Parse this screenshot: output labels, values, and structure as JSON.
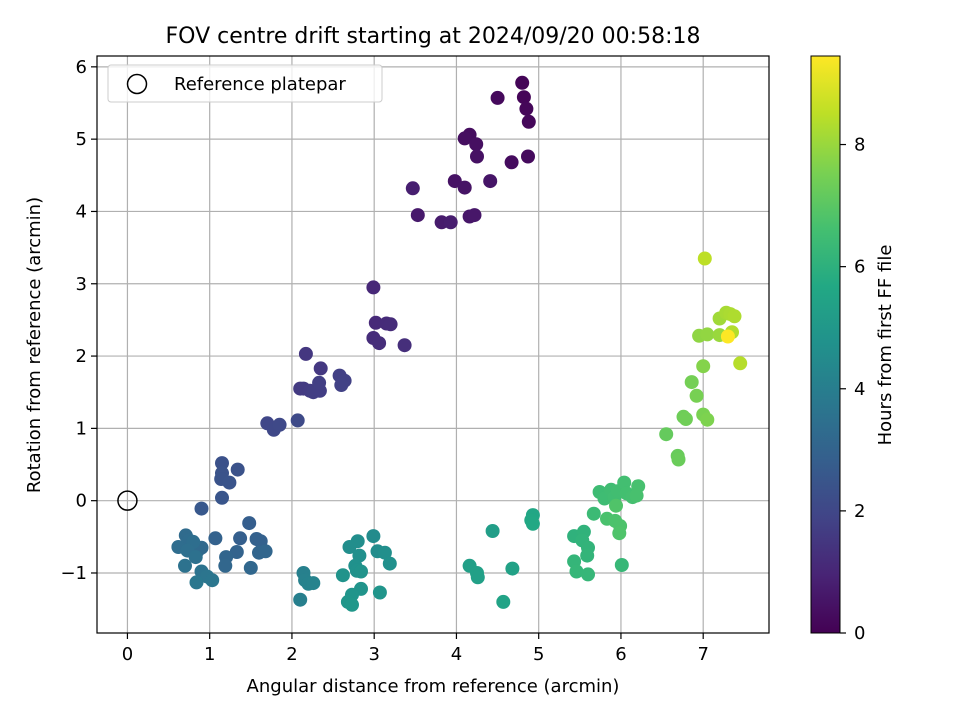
{
  "chart_data": {
    "type": "scatter",
    "title": "FOV centre drift starting at 2024/09/20 00:58:18",
    "xlabel": "Angular distance from reference (arcmin)",
    "ylabel": "Rotation from reference (arcmin)",
    "xlim": [
      -0.37,
      7.8
    ],
    "ylim": [
      -1.83,
      6.15
    ],
    "xticks": [
      0,
      1,
      2,
      3,
      4,
      5,
      6,
      7
    ],
    "yticks": [
      -1,
      0,
      1,
      2,
      3,
      4,
      5,
      6
    ],
    "grid": true,
    "legend": {
      "position": "top-left",
      "entries": [
        "Reference platepar"
      ]
    },
    "reference_point": {
      "x": 0,
      "y": 0,
      "label": "Reference platepar"
    },
    "colorbar": {
      "label": "Hours from first FF file",
      "colormap": "viridis",
      "range": [
        0,
        9.45
      ],
      "ticks": [
        0,
        2,
        4,
        6,
        8
      ]
    },
    "points": [
      {
        "x": 4.8,
        "y": 5.78,
        "c": 0.1
      },
      {
        "x": 4.82,
        "y": 5.58,
        "c": 0.12
      },
      {
        "x": 4.85,
        "y": 5.42,
        "c": 0.15
      },
      {
        "x": 4.88,
        "y": 5.24,
        "c": 0.18
      },
      {
        "x": 4.5,
        "y": 5.57,
        "c": 0.22
      },
      {
        "x": 4.87,
        "y": 4.76,
        "c": 0.25
      },
      {
        "x": 4.67,
        "y": 4.68,
        "c": 0.28
      },
      {
        "x": 4.16,
        "y": 5.06,
        "c": 0.32
      },
      {
        "x": 4.1,
        "y": 5.01,
        "c": 0.35
      },
      {
        "x": 4.24,
        "y": 4.93,
        "c": 0.38
      },
      {
        "x": 4.25,
        "y": 4.76,
        "c": 0.42
      },
      {
        "x": 3.98,
        "y": 4.42,
        "c": 0.45
      },
      {
        "x": 4.1,
        "y": 4.33,
        "c": 0.5
      },
      {
        "x": 4.41,
        "y": 4.42,
        "c": 0.53
      },
      {
        "x": 4.16,
        "y": 3.93,
        "c": 0.56
      },
      {
        "x": 4.22,
        "y": 3.95,
        "c": 0.6
      },
      {
        "x": 3.53,
        "y": 3.95,
        "c": 0.65
      },
      {
        "x": 3.82,
        "y": 3.85,
        "c": 0.7
      },
      {
        "x": 3.93,
        "y": 3.85,
        "c": 0.75
      },
      {
        "x": 3.47,
        "y": 4.32,
        "c": 0.8
      },
      {
        "x": 2.99,
        "y": 2.95,
        "c": 1.05
      },
      {
        "x": 3.02,
        "y": 2.46,
        "c": 1.1
      },
      {
        "x": 3.15,
        "y": 2.45,
        "c": 1.15
      },
      {
        "x": 3.2,
        "y": 2.44,
        "c": 1.18
      },
      {
        "x": 2.99,
        "y": 2.25,
        "c": 1.2
      },
      {
        "x": 3.06,
        "y": 2.18,
        "c": 1.23
      },
      {
        "x": 3.37,
        "y": 2.15,
        "c": 1.27
      },
      {
        "x": 2.17,
        "y": 2.03,
        "c": 1.5
      },
      {
        "x": 2.35,
        "y": 1.83,
        "c": 1.55
      },
      {
        "x": 2.1,
        "y": 1.55,
        "c": 1.6
      },
      {
        "x": 2.14,
        "y": 1.55,
        "c": 1.63
      },
      {
        "x": 2.22,
        "y": 1.52,
        "c": 1.66
      },
      {
        "x": 2.26,
        "y": 1.5,
        "c": 1.7
      },
      {
        "x": 2.34,
        "y": 1.52,
        "c": 1.72
      },
      {
        "x": 2.33,
        "y": 1.63,
        "c": 1.75
      },
      {
        "x": 2.58,
        "y": 1.73,
        "c": 1.78
      },
      {
        "x": 2.64,
        "y": 1.66,
        "c": 1.8
      },
      {
        "x": 2.6,
        "y": 1.6,
        "c": 1.82
      },
      {
        "x": 1.7,
        "y": 1.07,
        "c": 2.0
      },
      {
        "x": 1.78,
        "y": 0.98,
        "c": 2.03
      },
      {
        "x": 1.85,
        "y": 1.05,
        "c": 2.06
      },
      {
        "x": 2.07,
        "y": 1.11,
        "c": 2.1
      },
      {
        "x": 1.15,
        "y": 0.52,
        "c": 2.35
      },
      {
        "x": 1.34,
        "y": 0.43,
        "c": 2.38
      },
      {
        "x": 1.15,
        "y": 0.38,
        "c": 2.4
      },
      {
        "x": 1.14,
        "y": 0.3,
        "c": 2.42
      },
      {
        "x": 1.24,
        "y": 0.25,
        "c": 2.45
      },
      {
        "x": 1.15,
        "y": 0.04,
        "c": 2.5
      },
      {
        "x": 0.9,
        "y": -0.11,
        "c": 2.6
      },
      {
        "x": 1.48,
        "y": -0.31,
        "c": 2.8
      },
      {
        "x": 1.37,
        "y": -0.52,
        "c": 2.85
      },
      {
        "x": 1.57,
        "y": -0.53,
        "c": 2.9
      },
      {
        "x": 1.62,
        "y": -0.56,
        "c": 2.92
      },
      {
        "x": 1.07,
        "y": -0.52,
        "c": 2.95
      },
      {
        "x": 1.33,
        "y": -0.71,
        "c": 3.0
      },
      {
        "x": 1.2,
        "y": -0.78,
        "c": 3.05
      },
      {
        "x": 1.6,
        "y": -0.72,
        "c": 3.08
      },
      {
        "x": 1.68,
        "y": -0.7,
        "c": 3.1
      },
      {
        "x": 1.19,
        "y": -0.9,
        "c": 3.13
      },
      {
        "x": 1.5,
        "y": -0.93,
        "c": 3.15
      },
      {
        "x": 0.9,
        "y": -0.65,
        "c": 3.2
      },
      {
        "x": 0.85,
        "y": -0.7,
        "c": 3.25
      },
      {
        "x": 0.71,
        "y": -0.48,
        "c": 3.3
      },
      {
        "x": 0.75,
        "y": -0.55,
        "c": 3.33
      },
      {
        "x": 0.62,
        "y": -0.64,
        "c": 3.36
      },
      {
        "x": 0.8,
        "y": -0.57,
        "c": 3.4
      },
      {
        "x": 0.73,
        "y": -0.69,
        "c": 3.45
      },
      {
        "x": 0.83,
        "y": -0.78,
        "c": 3.5
      },
      {
        "x": 0.7,
        "y": -0.9,
        "c": 3.55
      },
      {
        "x": 0.9,
        "y": -0.98,
        "c": 3.6
      },
      {
        "x": 0.97,
        "y": -1.05,
        "c": 3.65
      },
      {
        "x": 1.03,
        "y": -1.1,
        "c": 3.7
      },
      {
        "x": 0.84,
        "y": -1.13,
        "c": 3.75
      },
      {
        "x": 2.1,
        "y": -1.37,
        "c": 4.05
      },
      {
        "x": 2.14,
        "y": -1.0,
        "c": 4.1
      },
      {
        "x": 2.16,
        "y": -1.1,
        "c": 4.13
      },
      {
        "x": 2.2,
        "y": -1.15,
        "c": 4.16
      },
      {
        "x": 2.26,
        "y": -1.14,
        "c": 4.2
      },
      {
        "x": 2.99,
        "y": -0.49,
        "c": 4.5
      },
      {
        "x": 3.04,
        "y": -0.7,
        "c": 4.55
      },
      {
        "x": 2.8,
        "y": -0.56,
        "c": 4.6
      },
      {
        "x": 2.7,
        "y": -0.64,
        "c": 4.62
      },
      {
        "x": 3.13,
        "y": -0.72,
        "c": 4.65
      },
      {
        "x": 3.19,
        "y": -0.87,
        "c": 4.68
      },
      {
        "x": 2.82,
        "y": -0.76,
        "c": 4.7
      },
      {
        "x": 2.77,
        "y": -0.9,
        "c": 4.73
      },
      {
        "x": 2.79,
        "y": -0.97,
        "c": 4.76
      },
      {
        "x": 2.84,
        "y": -0.98,
        "c": 4.79
      },
      {
        "x": 2.62,
        "y": -1.03,
        "c": 4.82
      },
      {
        "x": 2.84,
        "y": -1.22,
        "c": 4.85
      },
      {
        "x": 3.07,
        "y": -1.27,
        "c": 4.88
      },
      {
        "x": 2.73,
        "y": -1.3,
        "c": 4.9
      },
      {
        "x": 2.68,
        "y": -1.4,
        "c": 4.93
      },
      {
        "x": 2.73,
        "y": -1.44,
        "c": 4.96
      },
      {
        "x": 4.44,
        "y": -0.42,
        "c": 5.25
      },
      {
        "x": 4.16,
        "y": -0.9,
        "c": 5.3
      },
      {
        "x": 4.25,
        "y": -1.0,
        "c": 5.33
      },
      {
        "x": 4.26,
        "y": -1.06,
        "c": 5.36
      },
      {
        "x": 4.68,
        "y": -0.94,
        "c": 5.4
      },
      {
        "x": 4.57,
        "y": -1.4,
        "c": 5.45
      },
      {
        "x": 4.93,
        "y": -0.2,
        "c": 5.6
      },
      {
        "x": 4.91,
        "y": -0.27,
        "c": 5.63
      },
      {
        "x": 4.93,
        "y": -0.32,
        "c": 5.66
      },
      {
        "x": 5.43,
        "y": -0.49,
        "c": 6.05
      },
      {
        "x": 5.55,
        "y": -0.43,
        "c": 6.08
      },
      {
        "x": 5.53,
        "y": -0.55,
        "c": 6.11
      },
      {
        "x": 5.6,
        "y": -0.65,
        "c": 6.14
      },
      {
        "x": 5.59,
        "y": -0.76,
        "c": 6.17
      },
      {
        "x": 5.43,
        "y": -0.84,
        "c": 6.2
      },
      {
        "x": 5.46,
        "y": -0.98,
        "c": 6.23
      },
      {
        "x": 5.6,
        "y": -1.02,
        "c": 6.26
      },
      {
        "x": 6.01,
        "y": -0.89,
        "c": 6.29
      },
      {
        "x": 5.67,
        "y": -0.18,
        "c": 6.4
      },
      {
        "x": 5.74,
        "y": 0.12,
        "c": 6.45
      },
      {
        "x": 5.8,
        "y": 0.03,
        "c": 6.48
      },
      {
        "x": 5.88,
        "y": 0.15,
        "c": 6.5
      },
      {
        "x": 5.92,
        "y": 0.05,
        "c": 6.53
      },
      {
        "x": 5.96,
        "y": 0.13,
        "c": 6.55
      },
      {
        "x": 6.04,
        "y": 0.25,
        "c": 6.58
      },
      {
        "x": 6.07,
        "y": 0.1,
        "c": 6.6
      },
      {
        "x": 6.14,
        "y": 0.05,
        "c": 6.63
      },
      {
        "x": 6.21,
        "y": 0.2,
        "c": 6.66
      },
      {
        "x": 6.19,
        "y": 0.07,
        "c": 6.69
      },
      {
        "x": 5.83,
        "y": -0.25,
        "c": 6.72
      },
      {
        "x": 5.93,
        "y": -0.28,
        "c": 6.75
      },
      {
        "x": 5.99,
        "y": -0.35,
        "c": 6.78
      },
      {
        "x": 5.98,
        "y": -0.45,
        "c": 6.8
      },
      {
        "x": 5.94,
        "y": -0.07,
        "c": 6.83
      },
      {
        "x": 6.55,
        "y": 0.92,
        "c": 7.2
      },
      {
        "x": 6.69,
        "y": 0.62,
        "c": 7.25
      },
      {
        "x": 6.7,
        "y": 0.57,
        "c": 7.28
      },
      {
        "x": 6.76,
        "y": 1.16,
        "c": 7.35
      },
      {
        "x": 6.79,
        "y": 1.13,
        "c": 7.38
      },
      {
        "x": 6.86,
        "y": 1.64,
        "c": 7.45
      },
      {
        "x": 6.92,
        "y": 1.45,
        "c": 7.5
      },
      {
        "x": 7.0,
        "y": 1.19,
        "c": 7.55
      },
      {
        "x": 7.05,
        "y": 1.12,
        "c": 7.6
      },
      {
        "x": 7.0,
        "y": 1.86,
        "c": 7.7
      },
      {
        "x": 6.95,
        "y": 2.28,
        "c": 7.85
      },
      {
        "x": 7.05,
        "y": 2.3,
        "c": 7.9
      },
      {
        "x": 7.2,
        "y": 2.29,
        "c": 8.0
      },
      {
        "x": 7.2,
        "y": 2.52,
        "c": 8.1
      },
      {
        "x": 7.28,
        "y": 2.6,
        "c": 8.2
      },
      {
        "x": 7.33,
        "y": 2.58,
        "c": 8.25
      },
      {
        "x": 7.38,
        "y": 2.55,
        "c": 8.3
      },
      {
        "x": 7.35,
        "y": 2.33,
        "c": 8.35
      },
      {
        "x": 7.45,
        "y": 1.9,
        "c": 8.4
      },
      {
        "x": 7.02,
        "y": 3.35,
        "c": 8.5
      },
      {
        "x": 7.3,
        "y": 2.27,
        "c": 9.45
      }
    ]
  }
}
